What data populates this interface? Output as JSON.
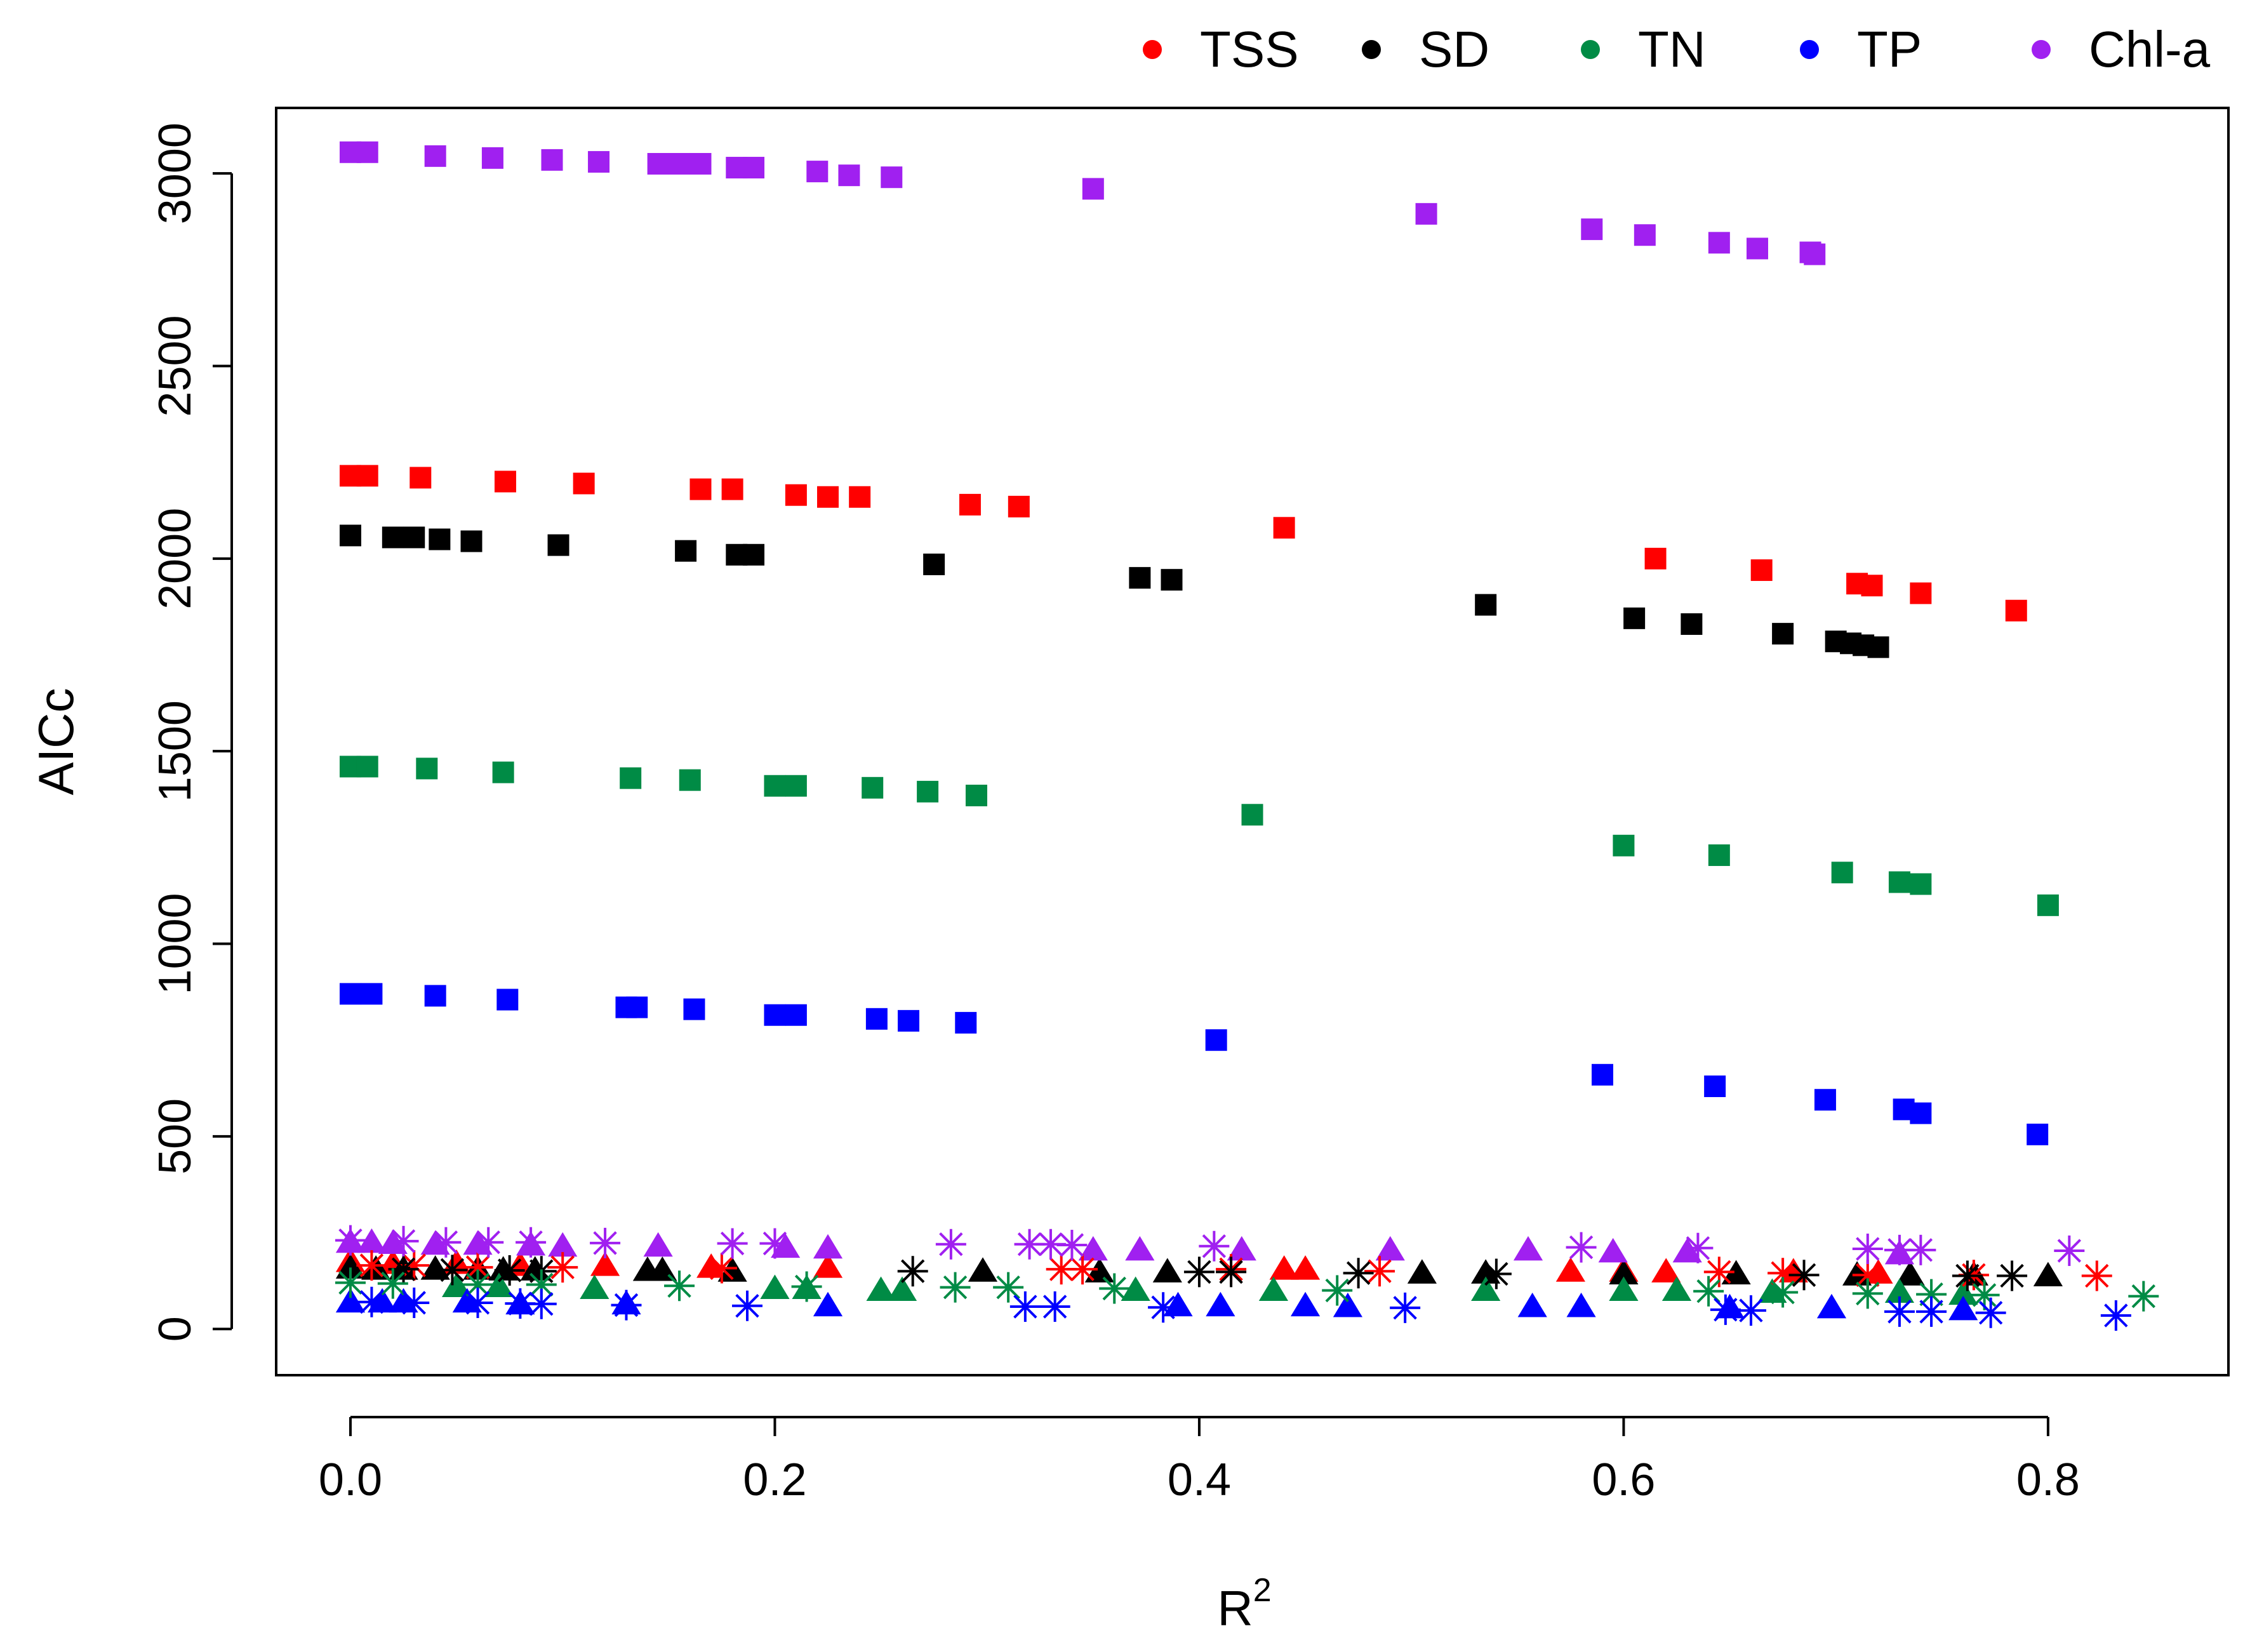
{
  "chart_data": {
    "type": "scatter",
    "title": "",
    "xlabel": "R",
    "xlabel_superscript": "2",
    "ylabel": "AICc",
    "xlim": [
      -0.035,
      0.885
    ],
    "ylim": [
      -120,
      3170
    ],
    "x_ticks": [
      {
        "value": 0.0,
        "label": "0.0"
      },
      {
        "value": 0.2,
        "label": "0.2"
      },
      {
        "value": 0.4,
        "label": "0.4"
      },
      {
        "value": 0.6,
        "label": "0.6"
      },
      {
        "value": 0.8,
        "label": "0.8"
      }
    ],
    "y_ticks": [
      {
        "value": 0,
        "label": "0"
      },
      {
        "value": 500,
        "label": "500"
      },
      {
        "value": 1000,
        "label": "1000"
      },
      {
        "value": 1500,
        "label": "1500"
      },
      {
        "value": 2000,
        "label": "2000"
      },
      {
        "value": 2500,
        "label": "2500"
      },
      {
        "value": 3000,
        "label": "3000"
      }
    ],
    "grid": false,
    "legend_position": "top-right (outside plot)",
    "legend": [
      {
        "name": "TSS",
        "color": "#ff0000"
      },
      {
        "name": "SD",
        "color": "#000000"
      },
      {
        "name": "TN",
        "color": "#008b45"
      },
      {
        "name": "TP",
        "color": "#0000ff"
      },
      {
        "name": "Chl-a",
        "color": "#a020f0"
      }
    ],
    "series": [
      {
        "name": "TSS",
        "color": "#ff0000",
        "marker": "square",
        "x": [
          0.0,
          0.008,
          0.033,
          0.073,
          0.11,
          0.165,
          0.18,
          0.21,
          0.225,
          0.24,
          0.292,
          0.315,
          0.44,
          0.615,
          0.665,
          0.71,
          0.717,
          0.74,
          0.785
        ],
        "y": [
          2215,
          2215,
          2210,
          2200,
          2195,
          2180,
          2180,
          2165,
          2160,
          2160,
          2140,
          2135,
          2080,
          2000,
          1970,
          1935,
          1930,
          1910,
          1865
        ]
      },
      {
        "name": "SD",
        "color": "#000000",
        "marker": "square",
        "x": [
          0.0,
          0.02,
          0.03,
          0.042,
          0.057,
          0.098,
          0.158,
          0.182,
          0.19,
          0.275,
          0.372,
          0.387,
          0.535,
          0.605,
          0.632,
          0.675,
          0.7,
          0.707,
          0.713,
          0.72
        ],
        "y": [
          2060,
          2055,
          2055,
          2050,
          2045,
          2035,
          2020,
          2010,
          2010,
          1985,
          1950,
          1945,
          1880,
          1845,
          1830,
          1805,
          1785,
          1780,
          1775,
          1770
        ]
      },
      {
        "name": "TN",
        "color": "#008b45",
        "marker": "square",
        "x": [
          0.0,
          0.008,
          0.036,
          0.072,
          0.132,
          0.16,
          0.2,
          0.21,
          0.246,
          0.272,
          0.295,
          0.425,
          0.6,
          0.645,
          0.703,
          0.73,
          0.74,
          0.8
        ],
        "y": [
          1460,
          1460,
          1455,
          1445,
          1430,
          1425,
          1410,
          1410,
          1405,
          1395,
          1385,
          1335,
          1255,
          1230,
          1185,
          1160,
          1155,
          1100
        ]
      },
      {
        "name": "TP",
        "color": "#0000ff",
        "marker": "square",
        "x": [
          0.0,
          0.01,
          0.04,
          0.074,
          0.13,
          0.135,
          0.162,
          0.2,
          0.21,
          0.248,
          0.263,
          0.29,
          0.408,
          0.59,
          0.643,
          0.695,
          0.732,
          0.74,
          0.795
        ],
        "y": [
          870,
          870,
          865,
          855,
          835,
          835,
          830,
          815,
          815,
          805,
          800,
          795,
          750,
          660,
          630,
          595,
          570,
          560,
          505
        ]
      },
      {
        "name": "Chl-a",
        "color": "#a020f0",
        "marker": "square",
        "x": [
          0.0,
          0.008,
          0.04,
          0.067,
          0.095,
          0.117,
          0.145,
          0.155,
          0.165,
          0.182,
          0.19,
          0.22,
          0.235,
          0.255,
          0.35,
          0.507,
          0.585,
          0.61,
          0.645,
          0.663,
          0.688,
          0.69
        ],
        "y": [
          3055,
          3055,
          3045,
          3040,
          3035,
          3030,
          3025,
          3025,
          3025,
          3015,
          3015,
          3005,
          2995,
          2990,
          2960,
          2895,
          2855,
          2840,
          2820,
          2805,
          2795,
          2790
        ]
      },
      {
        "name": "TSS (triangle)",
        "color": "#ff0000",
        "marker": "triangle",
        "x": [
          0.0,
          0.02,
          0.05,
          0.08,
          0.12,
          0.17,
          0.225,
          0.44,
          0.45,
          0.575,
          0.6,
          0.62,
          0.68,
          0.72
        ],
        "y": [
          175,
          170,
          170,
          165,
          165,
          160,
          160,
          155,
          155,
          150,
          150,
          148,
          148,
          145
        ]
      },
      {
        "name": "SD (triangle)",
        "color": "#000000",
        "marker": "triangle",
        "x": [
          0.0,
          0.012,
          0.025,
          0.04,
          0.06,
          0.072,
          0.087,
          0.14,
          0.147,
          0.18,
          0.298,
          0.353,
          0.385,
          0.505,
          0.535,
          0.6,
          0.653,
          0.71,
          0.735,
          0.765,
          0.8
        ],
        "y": [
          158,
          155,
          155,
          155,
          155,
          153,
          153,
          152,
          152,
          150,
          150,
          148,
          148,
          145,
          145,
          143,
          143,
          140,
          140,
          140,
          138
        ]
      },
      {
        "name": "TN (triangle)",
        "color": "#008b45",
        "marker": "triangle",
        "x": [
          0.05,
          0.07,
          0.115,
          0.2,
          0.215,
          0.25,
          0.26,
          0.37,
          0.435,
          0.535,
          0.6,
          0.625,
          0.67,
          0.73,
          0.76
        ],
        "y": [
          110,
          110,
          105,
          105,
          105,
          100,
          100,
          100,
          100,
          100,
          100,
          100,
          95,
          95,
          90
        ]
      },
      {
        "name": "TP (triangle)",
        "color": "#0000ff",
        "marker": "triangle",
        "x": [
          0.0,
          0.015,
          0.025,
          0.055,
          0.08,
          0.13,
          0.225,
          0.39,
          0.41,
          0.45,
          0.47,
          0.557,
          0.58,
          0.65,
          0.698,
          0.76
        ],
        "y": [
          70,
          70,
          70,
          70,
          65,
          65,
          60,
          60,
          60,
          60,
          58,
          58,
          58,
          55,
          55,
          50
        ]
      },
      {
        "name": "Chl-a (triangle)",
        "color": "#a020f0",
        "marker": "triangle",
        "x": [
          0.0,
          0.01,
          0.02,
          0.04,
          0.06,
          0.085,
          0.1,
          0.145,
          0.205,
          0.225,
          0.35,
          0.372,
          0.42,
          0.49,
          0.555,
          0.595,
          0.63,
          0.73
        ],
        "y": [
          225,
          225,
          222,
          220,
          220,
          218,
          215,
          215,
          212,
          210,
          205,
          205,
          205,
          205,
          205,
          200,
          200,
          195
        ]
      },
      {
        "name": "TSS (asterisk)",
        "color": "#ff0000",
        "marker": "asterisk",
        "x": [
          0.01,
          0.03,
          0.06,
          0.1,
          0.175,
          0.335,
          0.345,
          0.415,
          0.485,
          0.645,
          0.675,
          0.715,
          0.765,
          0.823
        ],
        "y": [
          165,
          165,
          160,
          160,
          158,
          155,
          155,
          155,
          150,
          148,
          145,
          140,
          140,
          138
        ]
      },
      {
        "name": "SD (asterisk)",
        "color": "#000000",
        "marker": "asterisk",
        "x": [
          0.025,
          0.048,
          0.075,
          0.09,
          0.265,
          0.4,
          0.415,
          0.475,
          0.54,
          0.685,
          0.762,
          0.783
        ],
        "y": [
          155,
          153,
          152,
          150,
          150,
          148,
          148,
          145,
          143,
          140,
          138,
          138
        ]
      },
      {
        "name": "TN (asterisk)",
        "color": "#008b45",
        "marker": "asterisk",
        "x": [
          0.0,
          0.02,
          0.06,
          0.09,
          0.155,
          0.215,
          0.285,
          0.31,
          0.36,
          0.465,
          0.64,
          0.675,
          0.715,
          0.745,
          0.77,
          0.845
        ],
        "y": [
          120,
          118,
          115,
          115,
          112,
          110,
          108,
          108,
          105,
          100,
          98,
          95,
          92,
          90,
          88,
          85
        ]
      },
      {
        "name": "TP (asterisk)",
        "color": "#0000ff",
        "marker": "asterisk",
        "x": [
          0.01,
          0.03,
          0.06,
          0.08,
          0.09,
          0.13,
          0.187,
          0.318,
          0.332,
          0.383,
          0.497,
          0.648,
          0.66,
          0.73,
          0.745,
          0.773,
          0.832
        ],
        "y": [
          70,
          68,
          68,
          66,
          65,
          62,
          60,
          58,
          58,
          56,
          55,
          50,
          48,
          45,
          45,
          42,
          35
        ]
      },
      {
        "name": "Chl-a (asterisk)",
        "color": "#a020f0",
        "marker": "asterisk",
        "x": [
          0.0,
          0.025,
          0.045,
          0.065,
          0.085,
          0.12,
          0.18,
          0.2,
          0.283,
          0.32,
          0.33,
          0.34,
          0.407,
          0.58,
          0.635,
          0.715,
          0.73,
          0.74,
          0.81
        ],
        "y": [
          230,
          228,
          225,
          225,
          225,
          223,
          222,
          222,
          220,
          220,
          220,
          218,
          215,
          212,
          210,
          208,
          205,
          205,
          203
        ]
      }
    ]
  }
}
